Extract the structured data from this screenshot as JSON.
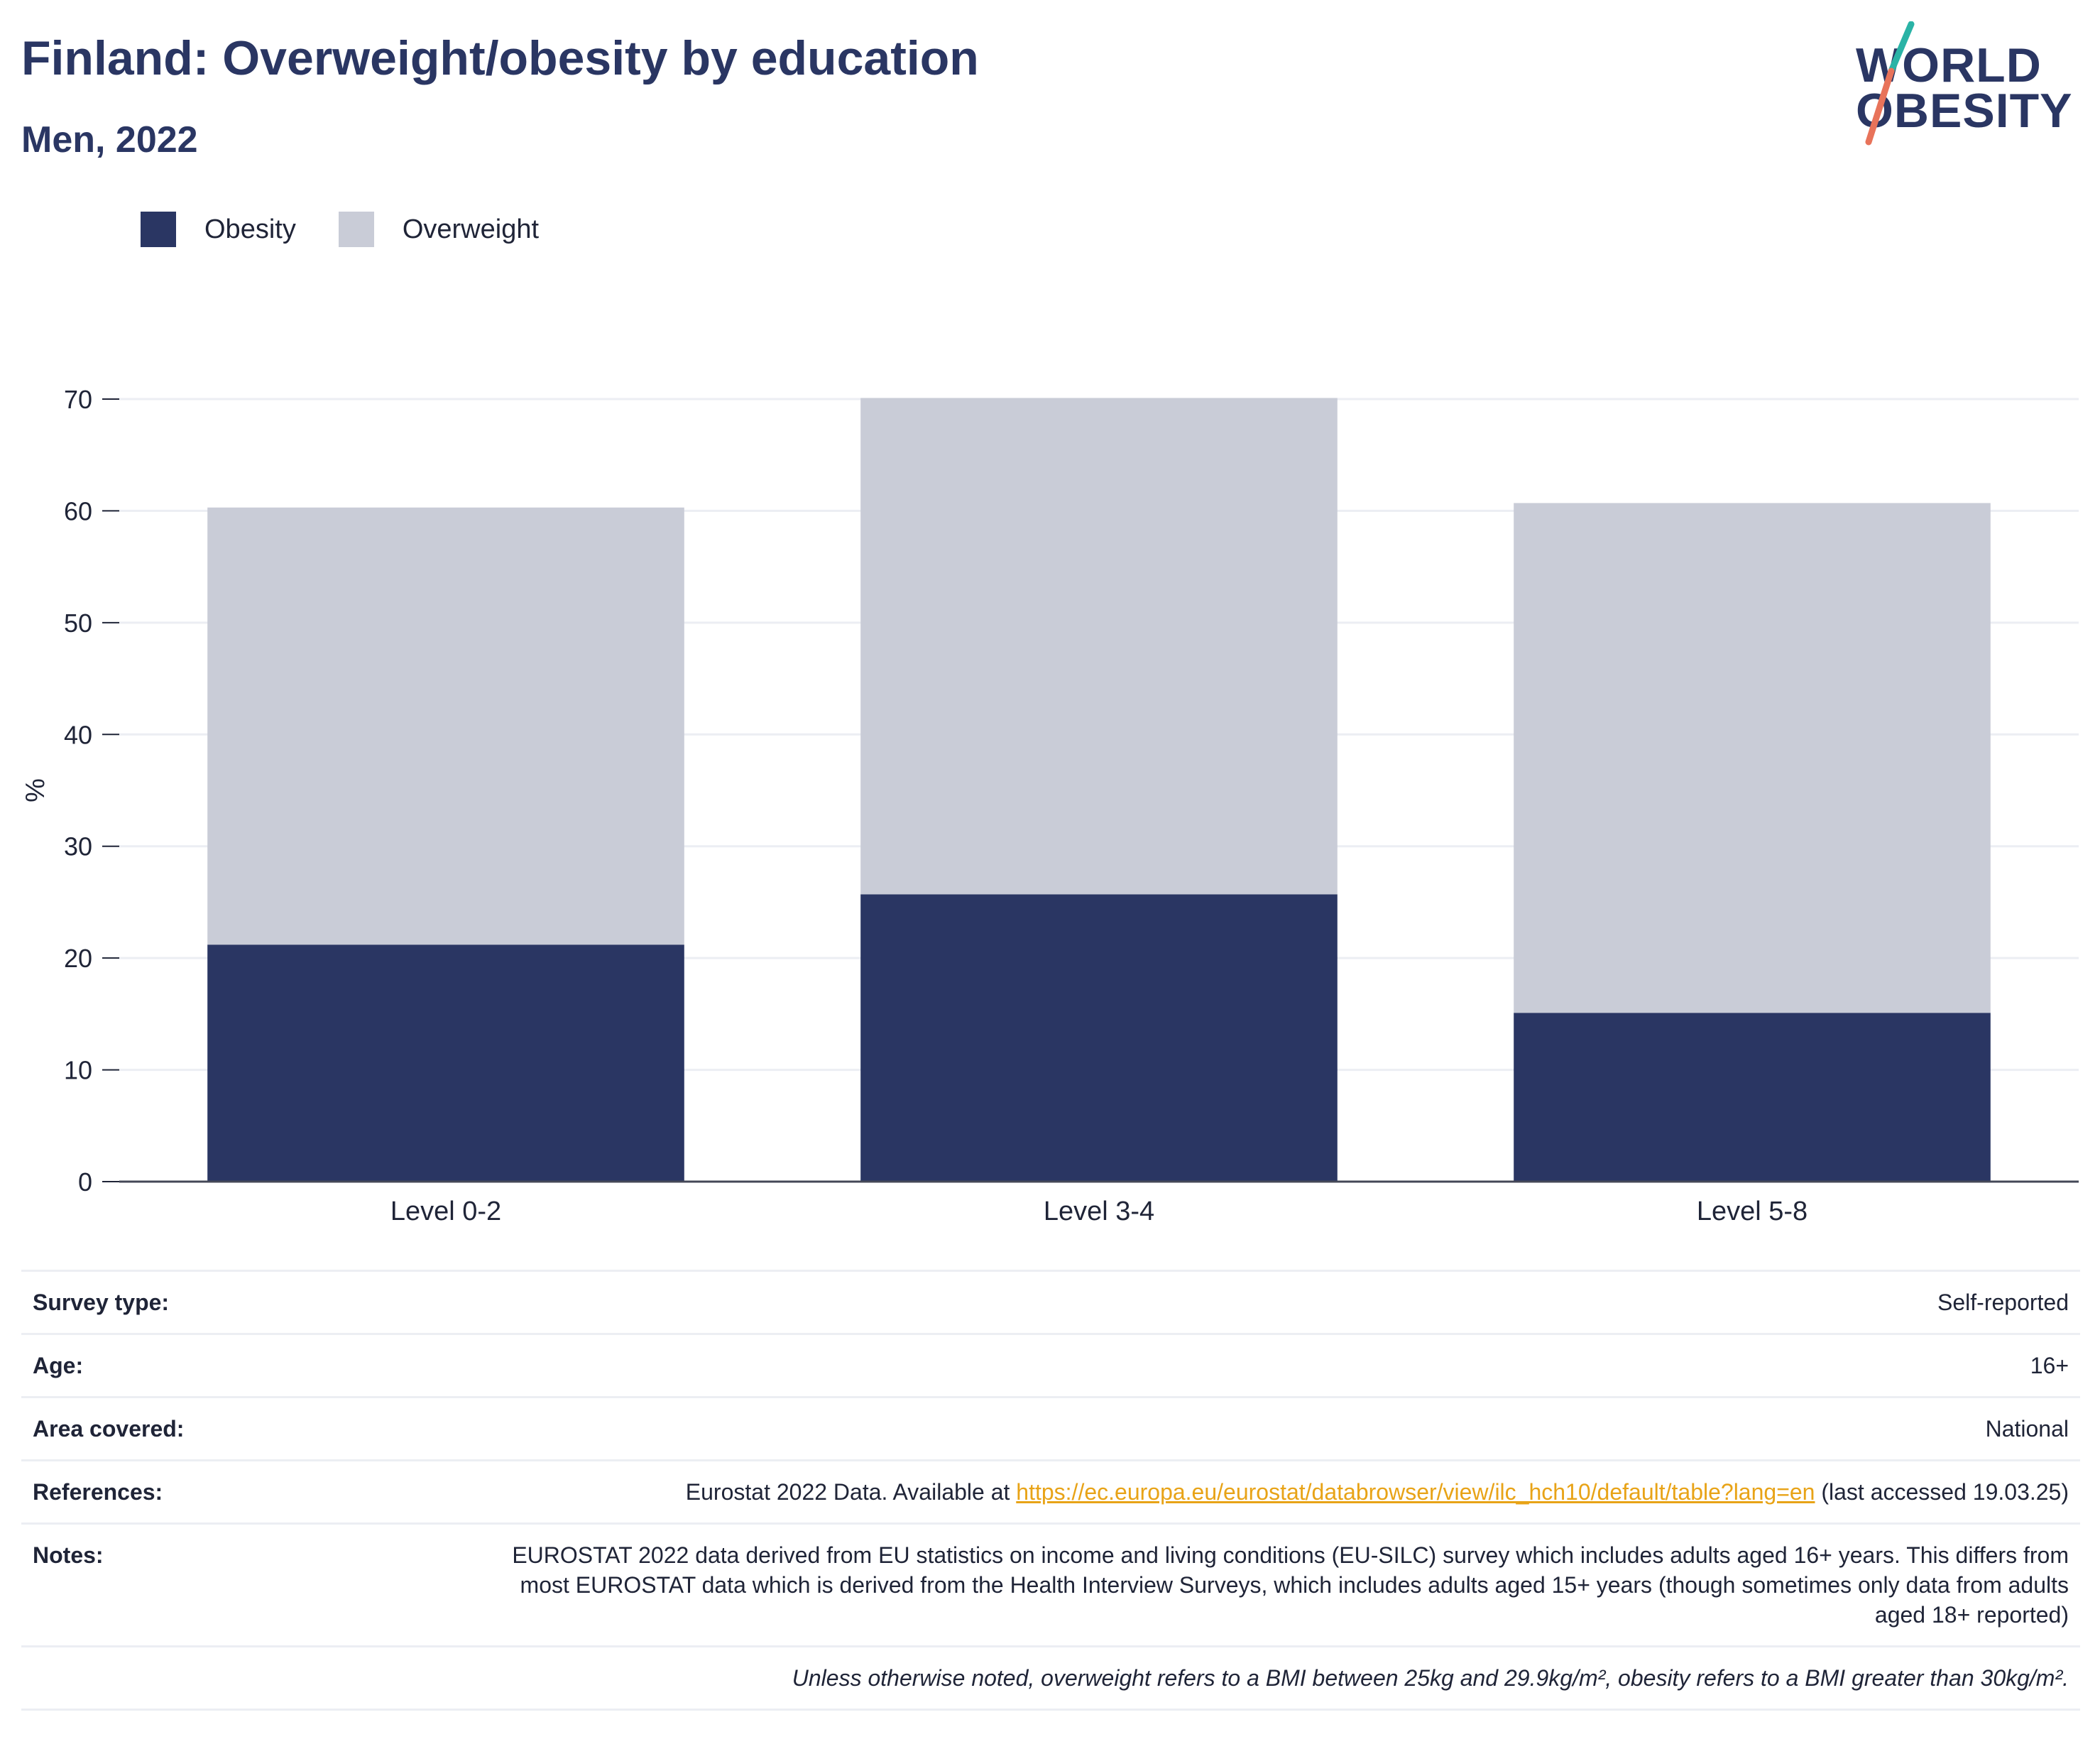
{
  "header": {
    "title": "Finland: Overweight/obesity by education",
    "subtitle": "Men, 2022"
  },
  "logo": {
    "line1": "WORLD",
    "line2": "OBESITY",
    "colors": {
      "text": "#2a3663",
      "slash_top": "#2ab3a6",
      "slash_bottom": "#e8735a"
    }
  },
  "legend": {
    "items": [
      {
        "label": "Obesity",
        "color": "#2a3663"
      },
      {
        "label": "Overweight",
        "color": "#c9ccd7"
      }
    ]
  },
  "chart_data": {
    "type": "bar",
    "stacked": true,
    "categories": [
      "Level 0-2",
      "Level 3-4",
      "Level 5-8"
    ],
    "series": [
      {
        "name": "Obesity",
        "values": [
          21.2,
          25.7,
          15.1
        ],
        "color": "#2a3663"
      },
      {
        "name": "Overweight",
        "values": [
          39.1,
          44.4,
          45.6
        ],
        "color": "#c9ccd7"
      }
    ],
    "ylabel": "%",
    "ylim": [
      0,
      70
    ],
    "yticks": [
      0,
      10,
      20,
      30,
      40,
      50,
      60,
      70
    ],
    "grid": true,
    "legend_position": "top-left"
  },
  "info": {
    "survey_type": {
      "label": "Survey type:",
      "value": "Self-reported"
    },
    "age": {
      "label": "Age:",
      "value": "16+"
    },
    "area": {
      "label": "Area covered:",
      "value": "National"
    },
    "references": {
      "label": "References:",
      "prefix": "Eurostat 2022 Data. Available at ",
      "link": "https://ec.europa.eu/eurostat/databrowser/view/ilc_hch10/default/table?lang=en",
      "suffix": " (last accessed 19.03.25)"
    },
    "notes": {
      "label": "Notes:",
      "value": "EUROSTAT 2022 data derived from EU statistics on income and living conditions (EU-SILC) survey which includes adults aged 16+ years. This differs from most EUROSTAT data which is derived from the Health Interview Surveys, which includes adults aged 15+ years (though sometimes only data from adults aged 18+ reported)"
    },
    "footnote": "Unless otherwise noted, overweight refers to a BMI between 25kg and 29.9kg/m², obesity refers to a BMI greater than 30kg/m²."
  }
}
